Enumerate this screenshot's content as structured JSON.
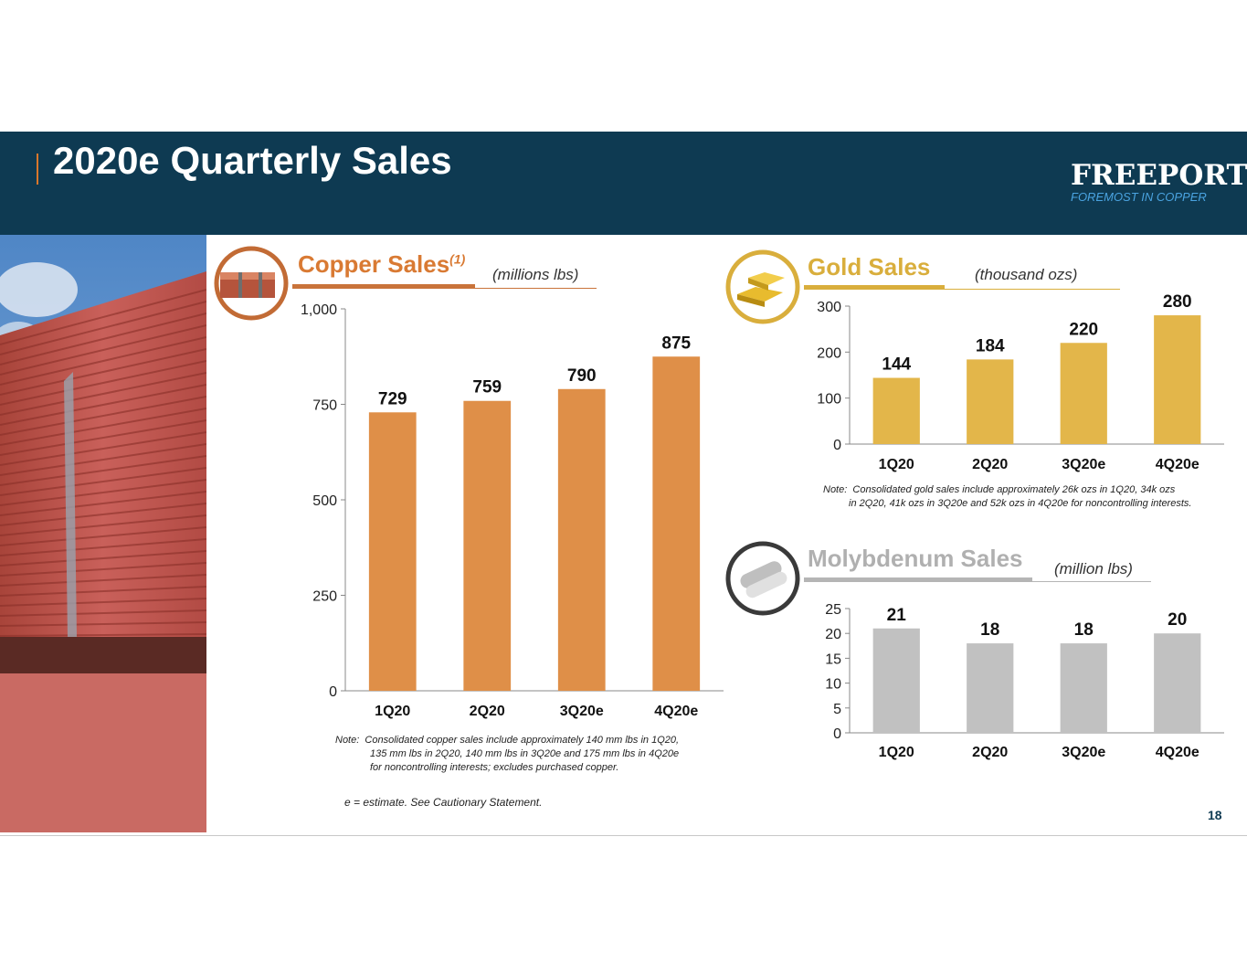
{
  "header": {
    "title": "2020e Quarterly Sales",
    "logo": "FREEPORT",
    "logo_tagline": "FOREMOST IN COPPER"
  },
  "colors": {
    "header_bg": "#0e3a52",
    "copper": "#df8f48",
    "gold": "#e3b64a",
    "moly": "#c1c1c1"
  },
  "copper": {
    "title": "Copper Sales",
    "superscript": "(1)",
    "units": "(millions lbs)",
    "note_label": "Note:",
    "note_lines": [
      "Consolidated copper sales include approximately 140 mm lbs in 1Q20,",
      "135 mm lbs in 2Q20, 140 mm lbs in 3Q20e and 175 mm lbs in 4Q20e",
      "for noncontrolling interests; excludes purchased copper."
    ],
    "estimate_note": "e = estimate. See Cautionary Statement."
  },
  "gold": {
    "title": "Gold Sales",
    "units": "(thousand ozs)",
    "note_label": "Note:",
    "note_lines": [
      "Consolidated gold sales include approximately 26k ozs in 1Q20, 34k ozs",
      "in 2Q20, 41k ozs in 3Q20e and 52k ozs in 4Q20e for noncontrolling interests."
    ]
  },
  "moly": {
    "title": "Molybdenum  Sales",
    "units": "(million lbs)"
  },
  "page_number": "18",
  "chart_data": [
    {
      "type": "bar",
      "categories": [
        "1Q20",
        "2Q20",
        "3Q20e",
        "4Q20e"
      ],
      "values": [
        729,
        759,
        790,
        875
      ],
      "ylim": [
        0,
        1000
      ],
      "yticks": [
        0,
        250,
        500,
        750,
        1000
      ],
      "ytick_labels": [
        "0",
        "250",
        "500",
        "750",
        "1,000"
      ]
    },
    {
      "type": "bar",
      "categories": [
        "1Q20",
        "2Q20",
        "3Q20e",
        "4Q20e"
      ],
      "values": [
        144,
        184,
        220,
        280
      ],
      "ylim": [
        0,
        300
      ],
      "yticks": [
        0,
        100,
        200,
        300
      ],
      "ytick_labels": [
        "0",
        "100",
        "200",
        "300"
      ]
    },
    {
      "type": "bar",
      "categories": [
        "1Q20",
        "2Q20",
        "3Q20e",
        "4Q20e"
      ],
      "values": [
        21,
        18,
        18,
        20
      ],
      "ylim": [
        0,
        25
      ],
      "yticks": [
        0,
        5,
        10,
        15,
        20,
        25
      ],
      "ytick_labels": [
        "0",
        "5",
        "10",
        "15",
        "20",
        "25"
      ]
    }
  ]
}
